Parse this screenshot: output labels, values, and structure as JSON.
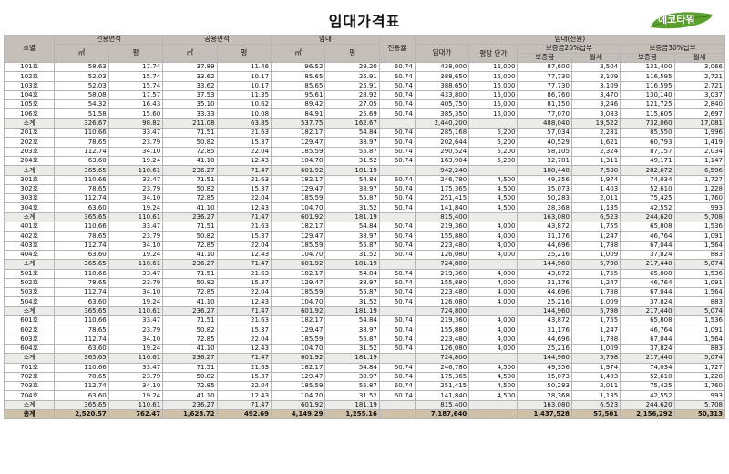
{
  "title": "임대가격표",
  "logo": {
    "text": "에코타워",
    "color": "#5aa02c"
  },
  "header": {
    "unit": "호별",
    "exclusive_area": "전용면적",
    "common_area": "공용면적",
    "lease_area": "임대",
    "exclusive_rate": "전용율",
    "rent_group": "임대(천원)",
    "rent_price": "임대가",
    "unit_price": "평당 단가",
    "deposit20": "보증금20%납부",
    "deposit30": "보증금30%납부",
    "sqm": "㎡",
    "pyeong": "평",
    "deposit": "보증금",
    "monthly": "월세"
  },
  "rows": [
    {
      "type": "unit",
      "cells": [
        "101호",
        "58.63",
        "17.74",
        "37.89",
        "11.46",
        "96.52",
        "29.20",
        "60.74",
        "438,000",
        "15,000",
        "87,600",
        "3,504",
        "131,400",
        "3,066"
      ]
    },
    {
      "type": "unit",
      "cells": [
        "102호",
        "52.03",
        "15.74",
        "33.62",
        "10.17",
        "85.65",
        "25.91",
        "60.74",
        "388,650",
        "15,000",
        "77,730",
        "3,109",
        "116,595",
        "2,721"
      ]
    },
    {
      "type": "unit",
      "cells": [
        "103호",
        "52.03",
        "15.74",
        "33.62",
        "10.17",
        "85.65",
        "25.91",
        "60.74",
        "388,650",
        "15,000",
        "77,730",
        "3,109",
        "116,595",
        "2,721"
      ]
    },
    {
      "type": "unit",
      "cells": [
        "104호",
        "58.08",
        "17.57",
        "37.53",
        "11.35",
        "95.61",
        "28.92",
        "60.74",
        "433,800",
        "15,000",
        "86,760",
        "3,470",
        "130,140",
        "3,037"
      ]
    },
    {
      "type": "unit",
      "cells": [
        "105호",
        "54.32",
        "16.43",
        "35.10",
        "10.62",
        "89.42",
        "27.05",
        "60.74",
        "405,750",
        "15,000",
        "81,150",
        "3,246",
        "121,725",
        "2,840"
      ]
    },
    {
      "type": "unit",
      "cells": [
        "106호",
        "51.58",
        "15.60",
        "33.33",
        "10.08",
        "84.91",
        "25.69",
        "60.74",
        "385,350",
        "15,000",
        "77,070",
        "3,083",
        "115,605",
        "2,697"
      ]
    },
    {
      "type": "subtotal",
      "cells": [
        "소계",
        "326.67",
        "98.82",
        "211.08",
        "63.85",
        "537.75",
        "162.67",
        "",
        "2,440,200",
        "",
        "488,040",
        "19,522",
        "732,060",
        "17,081"
      ]
    },
    {
      "type": "unit",
      "cells": [
        "201호",
        "110.66",
        "33.47",
        "71.51",
        "21.63",
        "182.17",
        "54.84",
        "60.74",
        "285,168",
        "5,200",
        "57,034",
        "2,281",
        "85,550",
        "1,996"
      ]
    },
    {
      "type": "unit",
      "cells": [
        "202호",
        "78.65",
        "23.79",
        "50.82",
        "15.37",
        "129.47",
        "38.97",
        "60.74",
        "202,644",
        "5,200",
        "40,529",
        "1,621",
        "60,793",
        "1,419"
      ]
    },
    {
      "type": "unit",
      "cells": [
        "203호",
        "112.74",
        "34.10",
        "72.85",
        "22.04",
        "185.59",
        "55.87",
        "60.74",
        "290,524",
        "5,200",
        "58,105",
        "2,324",
        "87,157",
        "2,034"
      ]
    },
    {
      "type": "unit",
      "cells": [
        "204호",
        "63.60",
        "19.24",
        "41.10",
        "12.43",
        "104.70",
        "31.52",
        "60.74",
        "163,904",
        "5,200",
        "32,781",
        "1,311",
        "49,171",
        "1,147"
      ]
    },
    {
      "type": "subtotal",
      "cells": [
        "소계",
        "365.65",
        "110.61",
        "236.27",
        "71.47",
        "601.92",
        "181.19",
        "",
        "942,240",
        "",
        "188,448",
        "7,538",
        "282,672",
        "6,596"
      ]
    },
    {
      "type": "unit",
      "cells": [
        "301호",
        "110.66",
        "33.47",
        "71.51",
        "21.63",
        "182.17",
        "54.84",
        "60.74",
        "246,780",
        "4,500",
        "49,356",
        "1,974",
        "74,034",
        "1,727"
      ]
    },
    {
      "type": "unit",
      "cells": [
        "302호",
        "78.65",
        "23.79",
        "50.82",
        "15.37",
        "129.47",
        "38.97",
        "60.74",
        "175,365",
        "4,500",
        "35,073",
        "1,403",
        "52,610",
        "1,228"
      ]
    },
    {
      "type": "unit",
      "cells": [
        "303호",
        "112.74",
        "34.10",
        "72.85",
        "22.04",
        "185.59",
        "55.87",
        "60.74",
        "251,415",
        "4,500",
        "50,283",
        "2,011",
        "75,425",
        "1,760"
      ]
    },
    {
      "type": "unit",
      "cells": [
        "304호",
        "63.60",
        "19.24",
        "41.10",
        "12.43",
        "104.70",
        "31.52",
        "60.74",
        "141,840",
        "4,500",
        "28,368",
        "1,135",
        "42,552",
        "993"
      ]
    },
    {
      "type": "subtotal",
      "cells": [
        "소계",
        "365.65",
        "110.61",
        "236.27",
        "71.47",
        "601.92",
        "181.19",
        "",
        "815,400",
        "",
        "163,080",
        "6,523",
        "244,620",
        "5,708"
      ]
    },
    {
      "type": "unit",
      "cells": [
        "401호",
        "110.66",
        "33.47",
        "71.51",
        "21.63",
        "182.17",
        "54.84",
        "60.74",
        "219,360",
        "4,000",
        "43,872",
        "1,755",
        "65,808",
        "1,536"
      ]
    },
    {
      "type": "unit",
      "cells": [
        "402호",
        "78.65",
        "23.79",
        "50.82",
        "15.37",
        "129.47",
        "38.97",
        "60.74",
        "155,880",
        "4,000",
        "31,176",
        "1,247",
        "46,764",
        "1,091"
      ]
    },
    {
      "type": "unit",
      "cells": [
        "403호",
        "112.74",
        "34.10",
        "72.85",
        "22.04",
        "185.59",
        "55.87",
        "60.74",
        "223,480",
        "4,000",
        "44,696",
        "1,788",
        "67,044",
        "1,564"
      ]
    },
    {
      "type": "unit",
      "cells": [
        "404호",
        "63.60",
        "19.24",
        "41.10",
        "12.43",
        "104.70",
        "31.52",
        "60.74",
        "126,080",
        "4,000",
        "25,216",
        "1,009",
        "37,824",
        "883"
      ]
    },
    {
      "type": "subtotal",
      "cells": [
        "소계",
        "365.65",
        "110.61",
        "236.27",
        "71.47",
        "601.92",
        "181.19",
        "",
        "724,800",
        "",
        "144,960",
        "5,798",
        "217,440",
        "5,074"
      ]
    },
    {
      "type": "unit",
      "cells": [
        "501호",
        "110.66",
        "33.47",
        "71.51",
        "21.63",
        "182.17",
        "54.84",
        "60.74",
        "219,360",
        "4,000",
        "43,872",
        "1,755",
        "65,808",
        "1,536"
      ]
    },
    {
      "type": "unit",
      "cells": [
        "502호",
        "78.65",
        "23.79",
        "50.82",
        "15.37",
        "129.47",
        "38.97",
        "60.74",
        "155,880",
        "4,000",
        "31,176",
        "1,247",
        "46,764",
        "1,091"
      ]
    },
    {
      "type": "unit",
      "cells": [
        "503호",
        "112.74",
        "34.10",
        "72.85",
        "22.04",
        "185.59",
        "55.87",
        "60.74",
        "223,480",
        "4,000",
        "44,696",
        "1,788",
        "67,044",
        "1,564"
      ]
    },
    {
      "type": "unit",
      "cells": [
        "504호",
        "63.60",
        "19.24",
        "41.10",
        "12.43",
        "104.70",
        "31.52",
        "60.74",
        "126,080",
        "4,000",
        "25,216",
        "1,009",
        "37,824",
        "883"
      ]
    },
    {
      "type": "subtotal",
      "cells": [
        "소계",
        "365.65",
        "110.61",
        "236.27",
        "71.47",
        "601.92",
        "181.19",
        "",
        "724,800",
        "",
        "144,960",
        "5,798",
        "217,440",
        "5,074"
      ]
    },
    {
      "type": "unit",
      "cells": [
        "601호",
        "110.66",
        "33.47",
        "71.51",
        "21.63",
        "182.17",
        "54.84",
        "60.74",
        "219,360",
        "4,000",
        "43,872",
        "1,755",
        "65,808",
        "1,536"
      ]
    },
    {
      "type": "unit",
      "cells": [
        "602호",
        "78.65",
        "23.79",
        "50.82",
        "15.37",
        "129.47",
        "38.97",
        "60.74",
        "155,880",
        "4,000",
        "31,176",
        "1,247",
        "46,764",
        "1,091"
      ]
    },
    {
      "type": "unit",
      "cells": [
        "603호",
        "112.74",
        "34.10",
        "72.85",
        "22.04",
        "185.59",
        "55.87",
        "60.74",
        "223,480",
        "4,000",
        "44,696",
        "1,788",
        "67,044",
        "1,564"
      ]
    },
    {
      "type": "unit",
      "cells": [
        "604호",
        "63.60",
        "19.24",
        "41.10",
        "12.43",
        "104.70",
        "31.52",
        "60.74",
        "126,080",
        "4,000",
        "25,216",
        "1,009",
        "37,824",
        "883"
      ]
    },
    {
      "type": "subtotal",
      "cells": [
        "소계",
        "365.65",
        "110.61",
        "236.27",
        "71.47",
        "601.92",
        "181.19",
        "",
        "724,800",
        "",
        "144,960",
        "5,798",
        "217,440",
        "5,074"
      ]
    },
    {
      "type": "unit",
      "cells": [
        "701호",
        "110.66",
        "33.47",
        "71.51",
        "21.63",
        "182.17",
        "54.84",
        "60.74",
        "246,780",
        "4,500",
        "49,356",
        "1,974",
        "74,034",
        "1,727"
      ]
    },
    {
      "type": "unit",
      "cells": [
        "702호",
        "78.65",
        "23.79",
        "50.82",
        "15.37",
        "129.47",
        "38.97",
        "60.74",
        "175,365",
        "4,500",
        "35,073",
        "1,403",
        "52,610",
        "1,228"
      ]
    },
    {
      "type": "unit",
      "cells": [
        "703호",
        "112.74",
        "34.10",
        "72.85",
        "22.04",
        "185.59",
        "55.87",
        "60.74",
        "251,415",
        "4,500",
        "50,283",
        "2,011",
        "75,425",
        "1,760"
      ]
    },
    {
      "type": "unit",
      "cells": [
        "704호",
        "63.60",
        "19.24",
        "41.10",
        "12.43",
        "104.70",
        "31.52",
        "60.74",
        "141,840",
        "4,500",
        "28,368",
        "1,135",
        "42,552",
        "993"
      ]
    },
    {
      "type": "subtotal",
      "cells": [
        "소계",
        "365.65",
        "110.61",
        "236.27",
        "71.47",
        "601.92",
        "181.19",
        "",
        "815,400",
        "",
        "163,080",
        "6,523",
        "244,620",
        "5,708"
      ]
    },
    {
      "type": "total",
      "cells": [
        "총계",
        "2,520.57",
        "762.47",
        "1,628.72",
        "492.69",
        "4,149.29",
        "1,255.16",
        "",
        "7,187,640",
        "",
        "1,437,528",
        "57,501",
        "2,156,292",
        "50,313"
      ]
    }
  ]
}
